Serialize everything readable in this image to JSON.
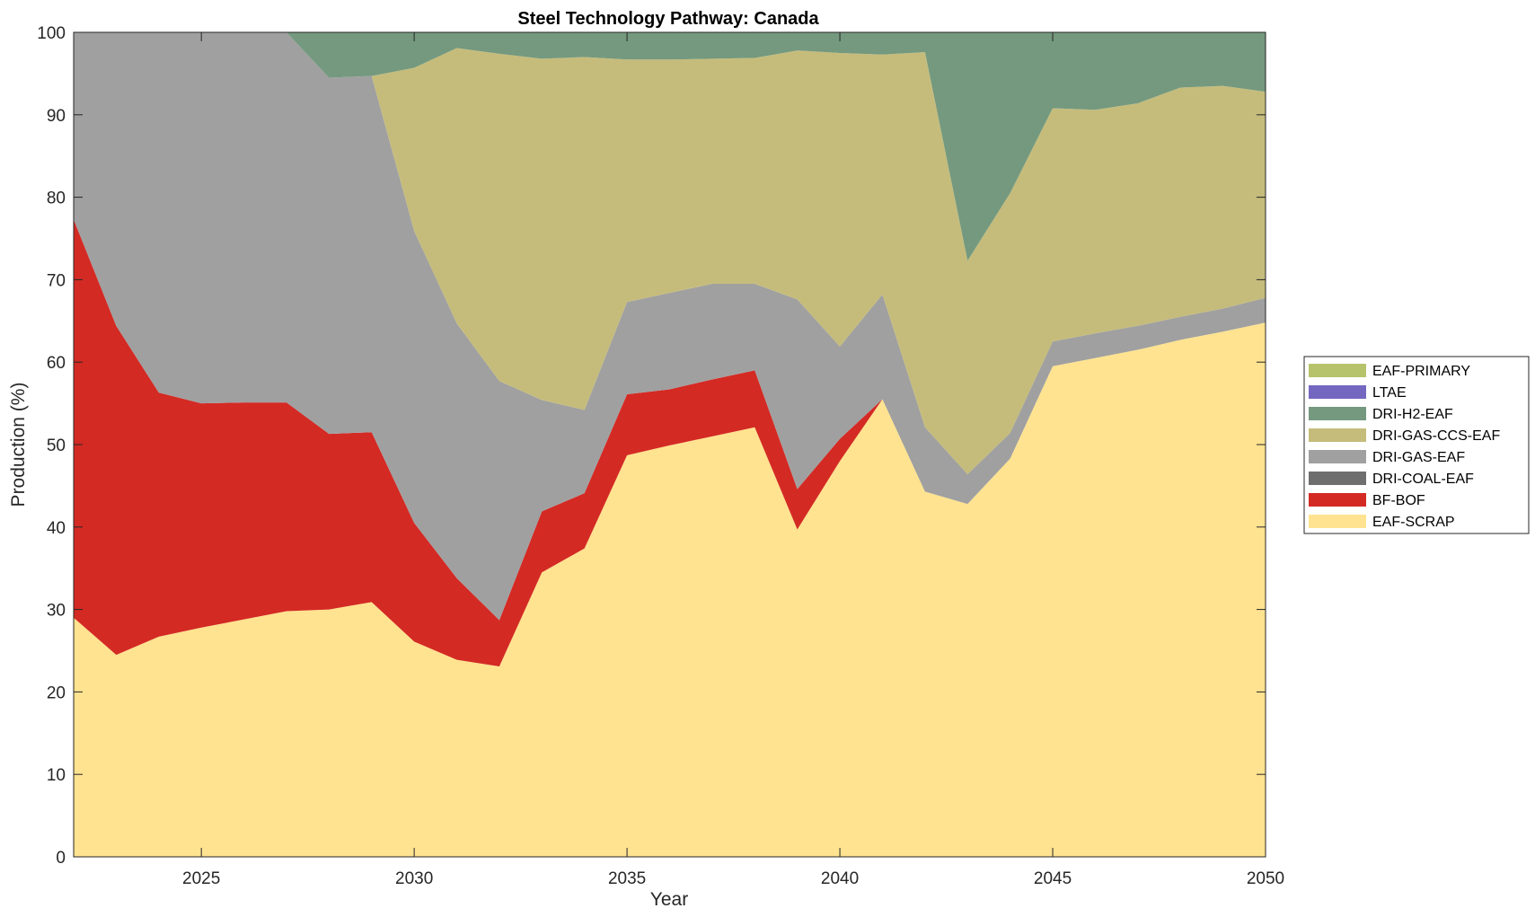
{
  "chart_data": {
    "type": "area",
    "stacked": true,
    "title": "Steel Technology Pathway: Canada",
    "xlabel": "Year",
    "ylabel": "Production (%)",
    "xlim": [
      2022,
      2050
    ],
    "ylim": [
      0,
      100
    ],
    "xticks": [
      2025,
      2030,
      2035,
      2040,
      2045,
      2050
    ],
    "yticks": [
      0,
      10,
      20,
      30,
      40,
      50,
      60,
      70,
      80,
      90,
      100
    ],
    "grid": false,
    "legend_position": "right",
    "x": [
      2022,
      2023,
      2024,
      2025,
      2026,
      2027,
      2028,
      2029,
      2030,
      2031,
      2032,
      2033,
      2034,
      2035,
      2036,
      2037,
      2038,
      2039,
      2040,
      2041,
      2042,
      2043,
      2044,
      2045,
      2046,
      2047,
      2048,
      2049,
      2050
    ],
    "series": [
      {
        "name": "EAF-SCRAP",
        "color": "#FFE390",
        "values": [
          29,
          24.5,
          26.7,
          27.8,
          28.8,
          29.8,
          30,
          30.9,
          26.1,
          23.9,
          23.1,
          34.5,
          37.4,
          48.7,
          49.9,
          51,
          52.1,
          39.7,
          48,
          55.5,
          44.3,
          42.8,
          48.3,
          59.5,
          60.5,
          61.5,
          62.7,
          63.7,
          64.8
        ]
      },
      {
        "name": "BF-BOF",
        "color": "#D42A24",
        "values": [
          48.3,
          39.9,
          29.6,
          27.2,
          26.3,
          25.3,
          21.3,
          20.6,
          14.4,
          9.9,
          5.6,
          7.4,
          6.7,
          7.4,
          6.8,
          6.9,
          6.9,
          4.9,
          2.7,
          0,
          0,
          0,
          0,
          0,
          0,
          0,
          0,
          0,
          0
        ]
      },
      {
        "name": "DRI-COAL-EAF",
        "color": "#6E6E6E",
        "values": [
          0,
          0,
          0,
          0,
          0,
          0,
          0,
          0,
          0,
          0,
          0,
          0,
          0,
          0,
          0,
          0,
          0,
          0,
          0,
          0,
          0,
          0,
          0,
          0,
          0,
          0,
          0,
          0,
          0
        ]
      },
      {
        "name": "DRI-GAS-EAF",
        "color": "#A0A0A0",
        "values": [
          22.7,
          35.6,
          43.7,
          45,
          44.9,
          44.9,
          43.2,
          43.2,
          35.4,
          30.9,
          29,
          13.5,
          10.1,
          11.2,
          11.7,
          11.6,
          10.5,
          23,
          11.2,
          12.7,
          7.8,
          3.6,
          3.1,
          3,
          3,
          2.9,
          2.8,
          2.8,
          3
        ]
      },
      {
        "name": "DRI-GAS-CCS-EAF",
        "color": "#C5BC7C",
        "values": [
          0,
          0,
          0,
          0,
          0,
          0,
          0,
          0,
          19.8,
          33.4,
          39.7,
          41.4,
          42.8,
          29.4,
          28.3,
          27.3,
          27.4,
          30.2,
          35.6,
          29.1,
          45.5,
          25.9,
          29.1,
          28.3,
          27.1,
          27,
          27.8,
          27,
          25
        ]
      },
      {
        "name": "DRI-H2-EAF",
        "color": "#74997E",
        "values": [
          0,
          0,
          0,
          0,
          0,
          0,
          5.5,
          5.3,
          4.3,
          2.9,
          2.6,
          3.3,
          3,
          3.3,
          3.3,
          3.2,
          3.1,
          2.4,
          2.5,
          2.7,
          2.4,
          27.7,
          19.5,
          9.2,
          9.4,
          8.6,
          6.7,
          6.5,
          7.2
        ]
      },
      {
        "name": "LTAE",
        "color": "#7467C0",
        "values": [
          0,
          0,
          0,
          0,
          0,
          0,
          0,
          0,
          0,
          0,
          0,
          0,
          0,
          0,
          0,
          0,
          0,
          0,
          0,
          0,
          0,
          0,
          0,
          0,
          0,
          0,
          0,
          0,
          0
        ]
      },
      {
        "name": "EAF-PRIMARY",
        "color": "#B7C36A",
        "values": [
          0,
          0,
          0,
          0,
          0,
          0,
          0,
          0,
          0,
          0,
          0,
          0,
          0,
          0,
          0,
          0,
          0,
          0,
          0,
          0,
          0,
          0,
          0,
          0,
          0,
          0,
          0,
          0,
          0
        ]
      }
    ],
    "legend": [
      "EAF-PRIMARY",
      "LTAE",
      "DRI-H2-EAF",
      "DRI-GAS-CCS-EAF",
      "DRI-GAS-EAF",
      "DRI-COAL-EAF",
      "BF-BOF",
      "EAF-SCRAP"
    ]
  }
}
